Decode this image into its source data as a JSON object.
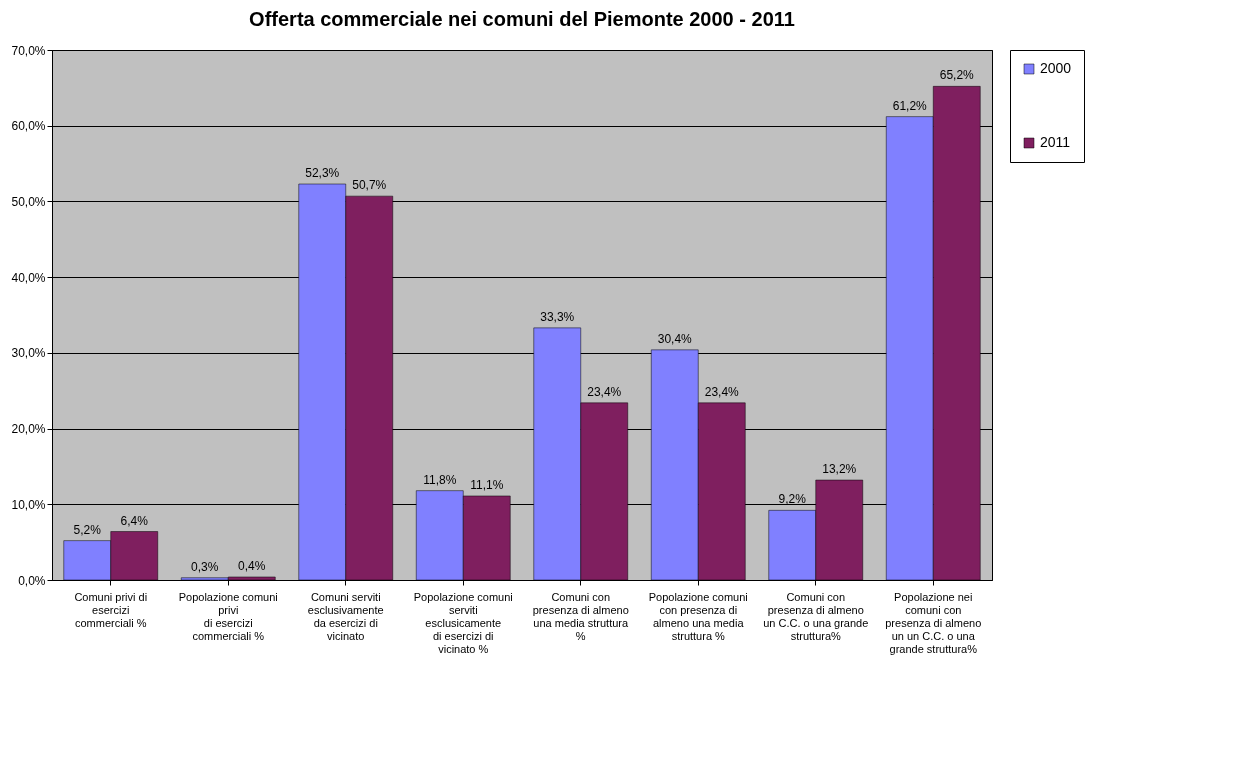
{
  "chart_data": {
    "type": "bar",
    "title": "Offerta commerciale nei comuni del Piemonte  2000 - 2011",
    "categories": [
      "Comuni privi di\nesercizi\ncommerciali %",
      "Popolazione comuni\nprivi\ndi esercizi\ncommerciali %",
      "Comuni serviti\nesclusivamente\nda esercizi di\nvicinato",
      "Popolazione comuni\nserviti\nesclusicamente\ndi esercizi di\nvicinato %",
      "Comuni con\npresenza di almeno\nuna media struttura\n%",
      "Popolazione comuni\ncon presenza di\nalmeno una media\nstruttura %",
      "Comuni con\npresenza di almeno\nun C.C. o una grande\nstruttura%",
      "Popolazione nei\ncomuni con\npresenza di almeno\nun un C.C. o una\ngrande struttura%"
    ],
    "series": [
      {
        "name": "2000",
        "color": "#8080ff",
        "values": [
          5.2,
          0.3,
          52.3,
          11.8,
          33.3,
          30.4,
          9.2,
          61.2
        ],
        "value_labels": [
          "5,2%",
          "0,3%",
          "52,3%",
          "11,8%",
          "33,3%",
          "30,4%",
          "9,2%",
          "61,2%"
        ]
      },
      {
        "name": "2011",
        "color": "#7f1f5f",
        "values": [
          6.4,
          0.4,
          50.7,
          11.1,
          23.4,
          23.4,
          13.2,
          65.2
        ],
        "value_labels": [
          "6,4%",
          "0,4%",
          "50,7%",
          "11,1%",
          "23,4%",
          "23,4%",
          "13,2%",
          "65,2%"
        ]
      }
    ],
    "ylim": [
      0,
      70
    ],
    "yticks": [
      {
        "value": 0,
        "label": "0,0%"
      },
      {
        "value": 10,
        "label": "10,0%"
      },
      {
        "value": 20,
        "label": "20,0%"
      },
      {
        "value": 30,
        "label": "30,0%"
      },
      {
        "value": 40,
        "label": "40,0%"
      },
      {
        "value": 50,
        "label": "50,0%"
      },
      {
        "value": 60,
        "label": "60,0%"
      },
      {
        "value": 70,
        "label": "70,0%"
      }
    ],
    "grid": "y",
    "legend": "right"
  }
}
